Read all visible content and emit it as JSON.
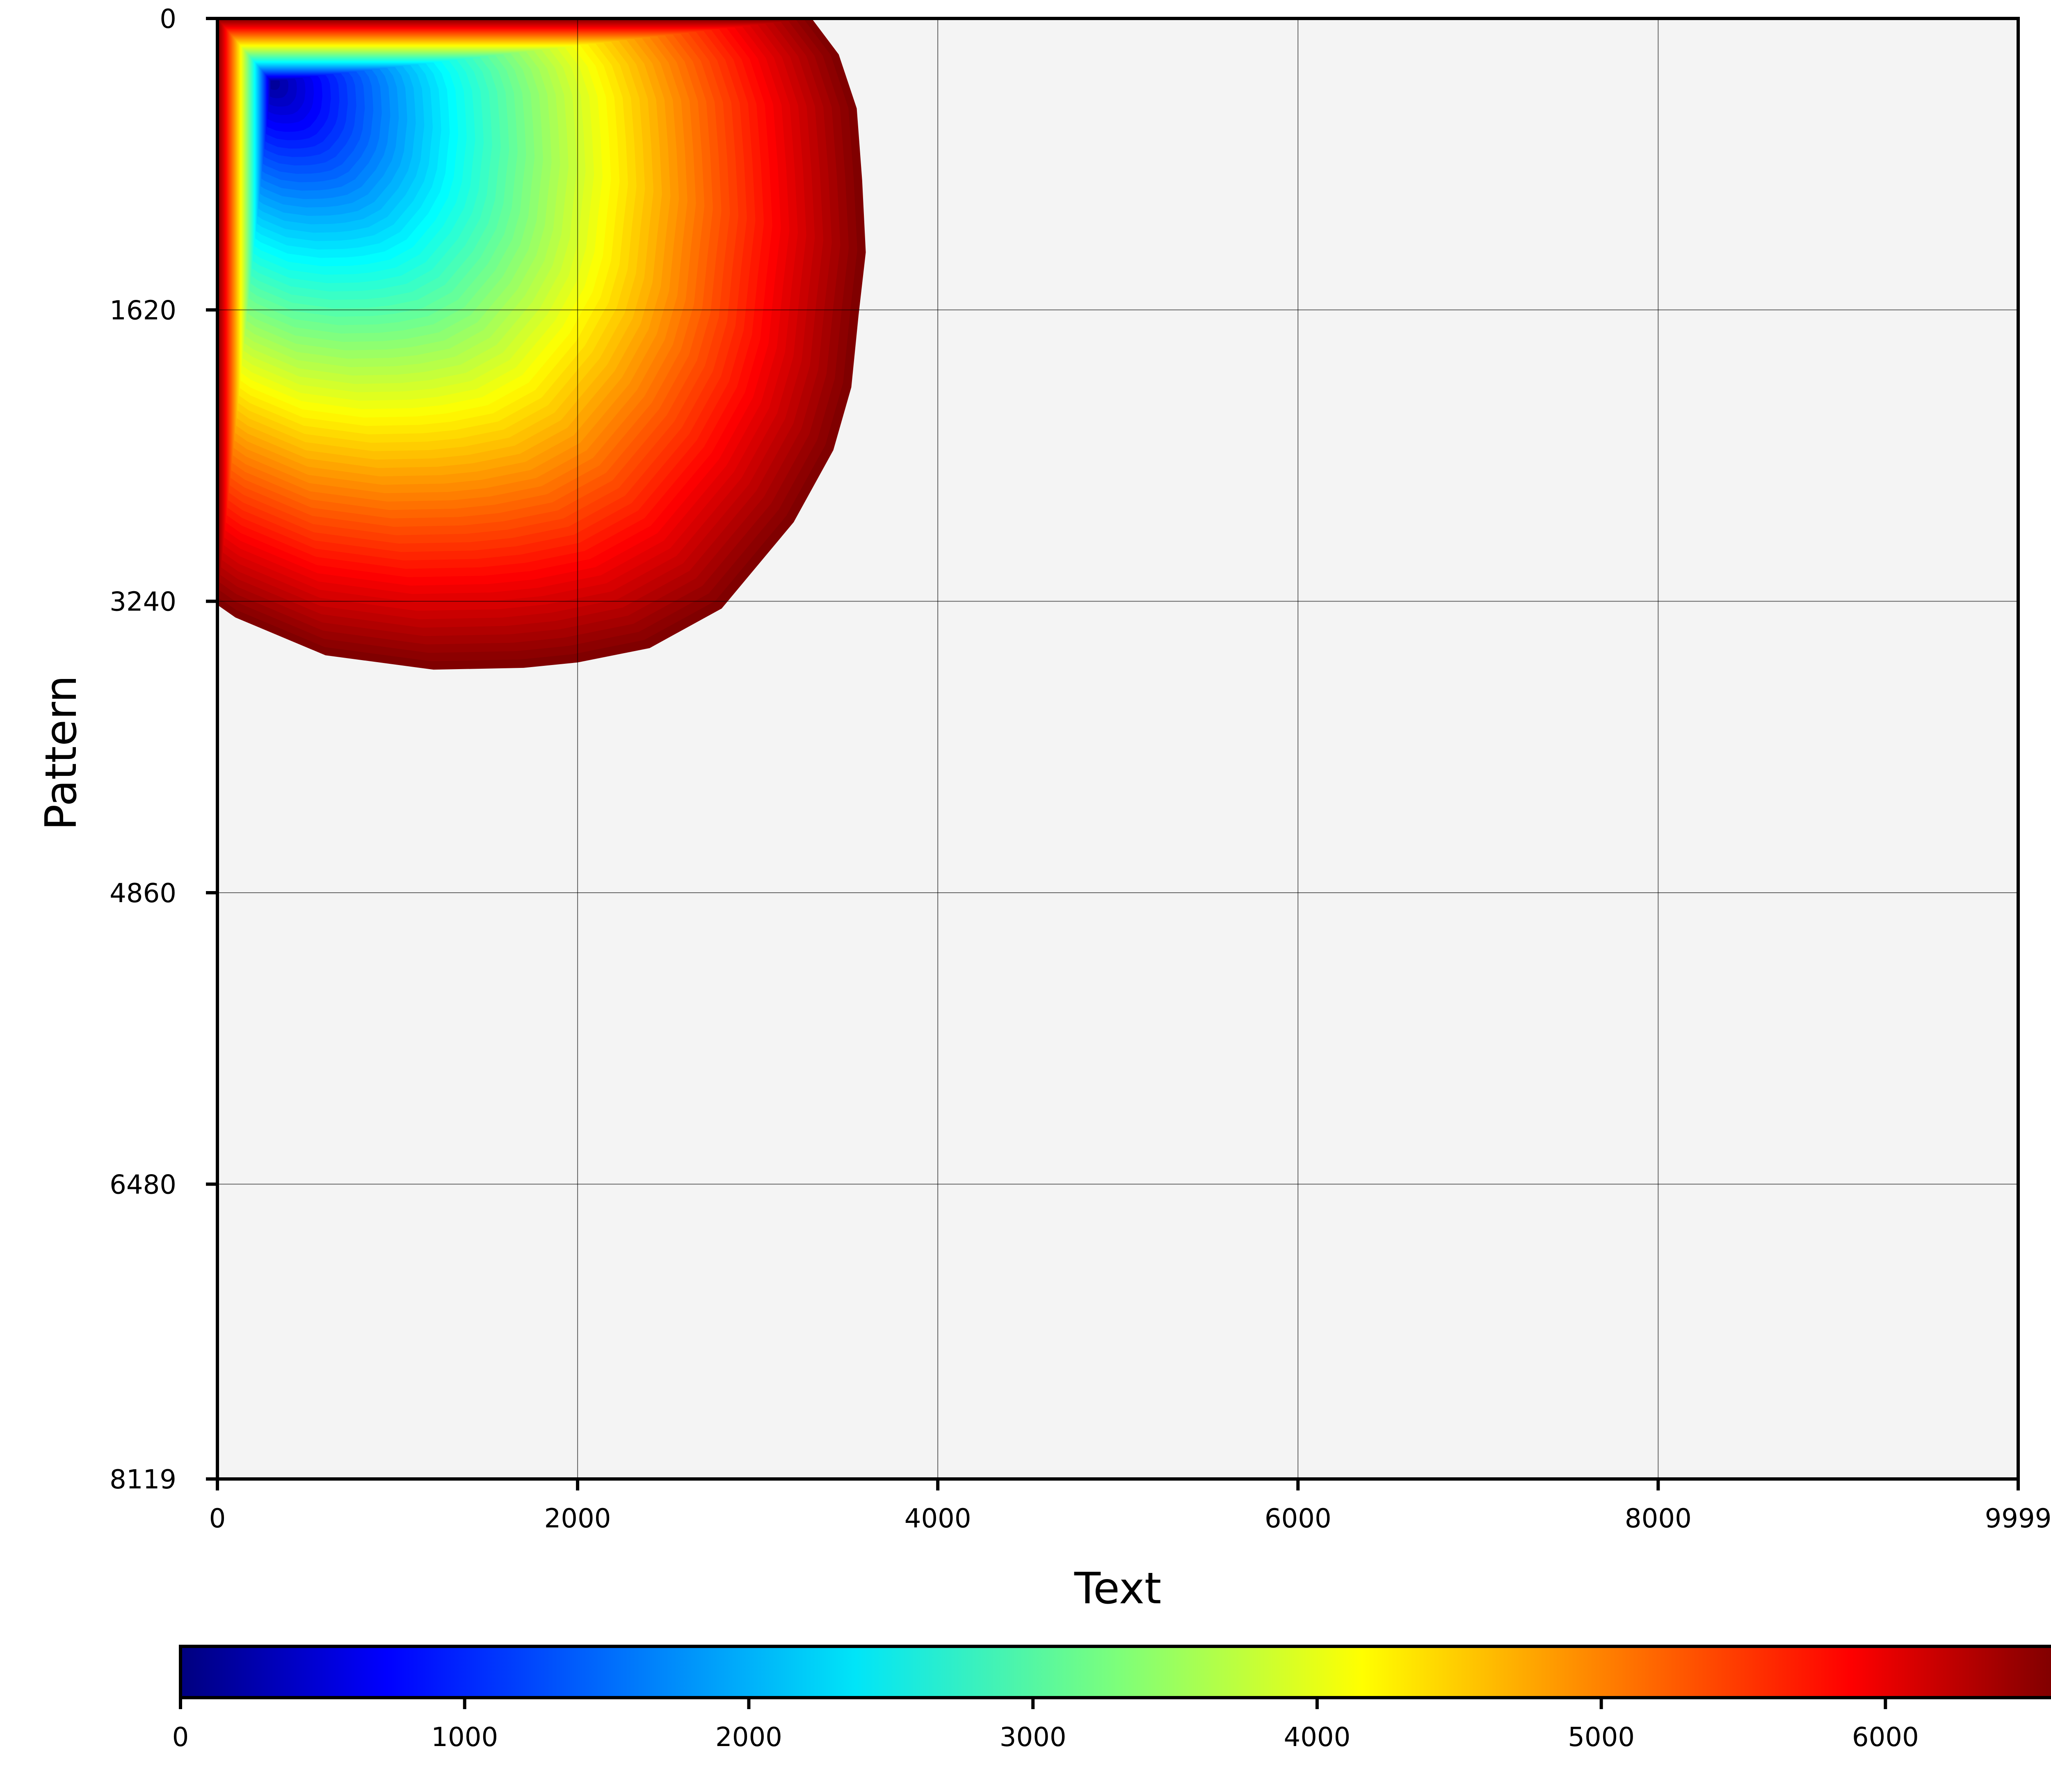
{
  "chart_data": {
    "type": "heatmap",
    "title": "",
    "xlabel": "Text",
    "ylabel": "Pattern",
    "xlim": [
      0,
      9999
    ],
    "ylim": [
      0,
      8119
    ],
    "y_axis_inverted": true,
    "x_ticks": [
      "0",
      "2000",
      "4000",
      "6000",
      "8000",
      "9999"
    ],
    "x_tick_values": [
      0,
      2000,
      4000,
      6000,
      8000,
      9999
    ],
    "y_ticks": [
      "0",
      "1620",
      "3240",
      "4860",
      "6480",
      "8119"
    ],
    "y_tick_values": [
      0,
      1620,
      3240,
      4860,
      6480,
      8119
    ],
    "grid": true,
    "background_color": "#f4f4f4",
    "colormap": "jet",
    "colorbar": {
      "orientation": "horizontal",
      "placement": "bottom",
      "range": [
        0,
        6600
      ],
      "ticks": [
        "0",
        "1000",
        "2000",
        "3000",
        "4000",
        "5000",
        "6000"
      ],
      "tick_values": [
        0,
        1000,
        2000,
        3000,
        4000,
        5000,
        6000
      ]
    },
    "field": {
      "description_free": true,
      "min_point": {
        "x": 300,
        "y": 350,
        "value": 0
      },
      "boundary": [
        {
          "x": 0,
          "y": 0
        },
        {
          "x": 3300,
          "y": 0
        },
        {
          "x": 3450,
          "y": 200
        },
        {
          "x": 3550,
          "y": 500
        },
        {
          "x": 3580,
          "y": 900
        },
        {
          "x": 3600,
          "y": 1300
        },
        {
          "x": 3560,
          "y": 1650
        },
        {
          "x": 3520,
          "y": 2050
        },
        {
          "x": 3420,
          "y": 2400
        },
        {
          "x": 3200,
          "y": 2800
        },
        {
          "x": 2800,
          "y": 3280
        },
        {
          "x": 2400,
          "y": 3500
        },
        {
          "x": 2000,
          "y": 3580
        },
        {
          "x": 1700,
          "y": 3610
        },
        {
          "x": 1200,
          "y": 3620
        },
        {
          "x": 600,
          "y": 3540
        },
        {
          "x": 100,
          "y": 3330
        },
        {
          "x": 0,
          "y": 3260
        }
      ],
      "boundary_value": 6600
    }
  }
}
